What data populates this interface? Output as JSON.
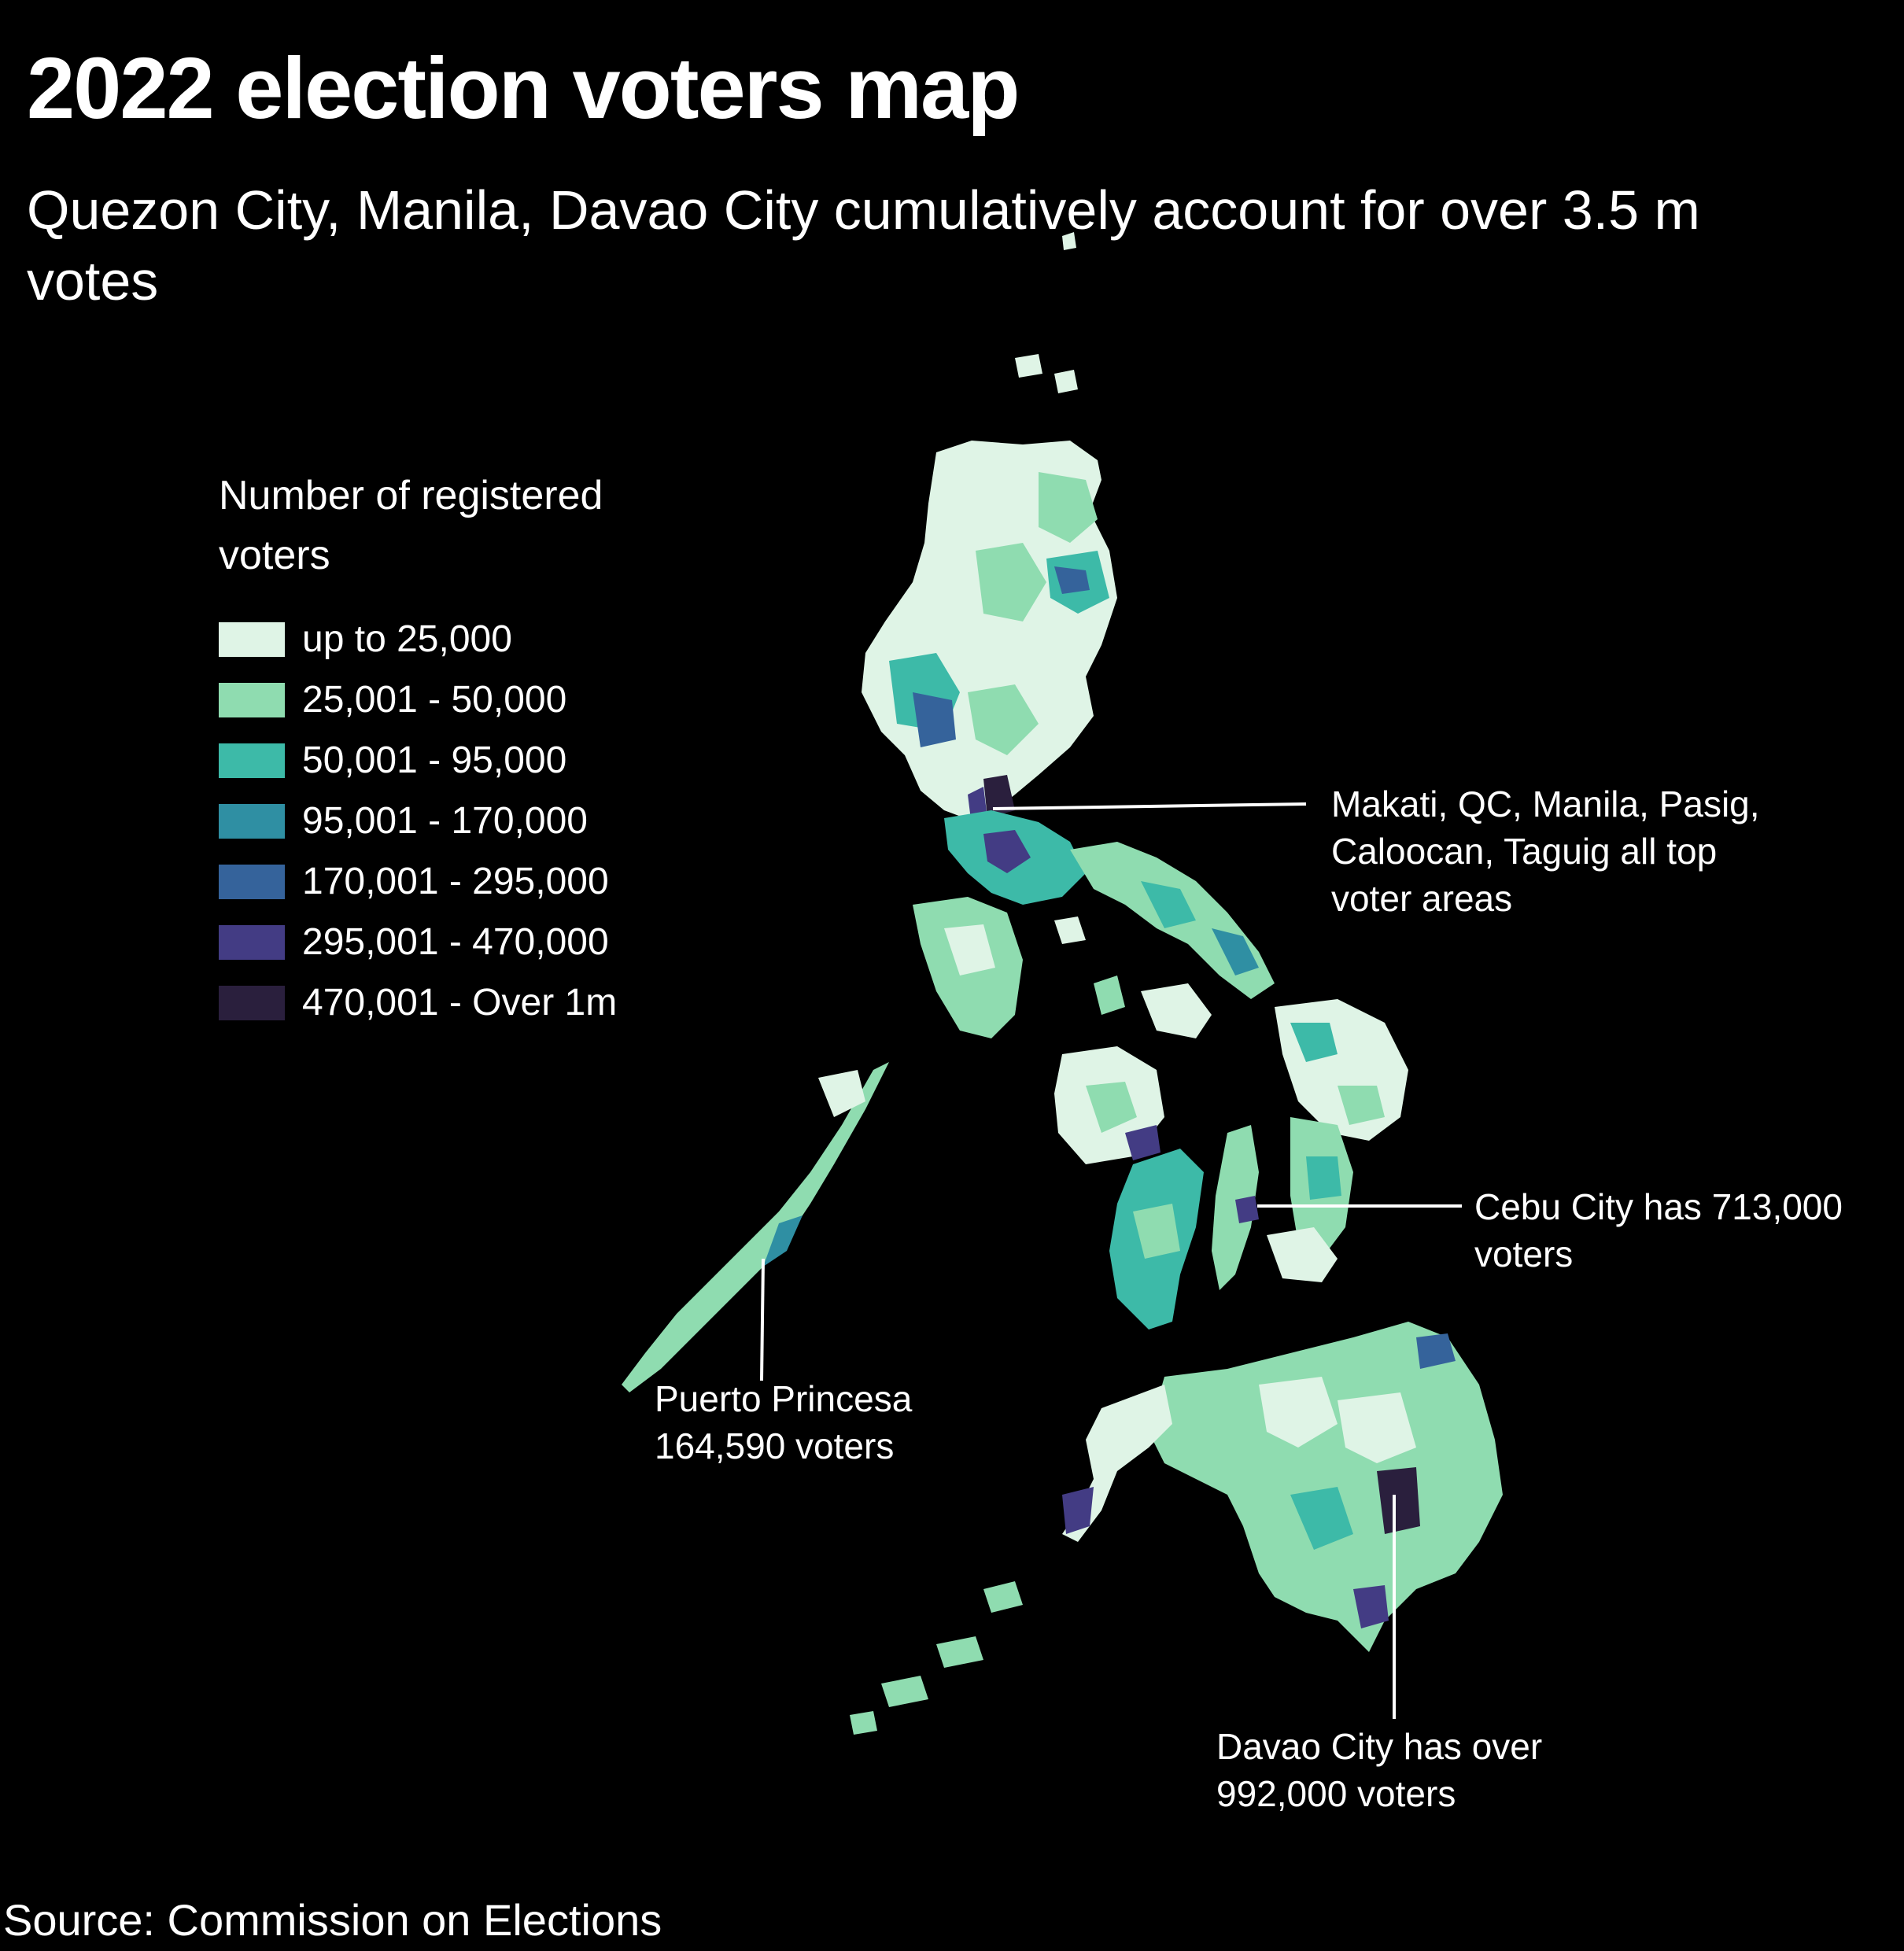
{
  "title": "2022 election voters map",
  "subtitle": "Quezon City, Manila, Davao City cumulatively account for over 3.5 m votes",
  "legend": {
    "title": "Number of registered voters",
    "items": [
      {
        "label": "up to 25,000",
        "color": "#dff4e6"
      },
      {
        "label": "25,001 - 50,000",
        "color": "#8fdcb0"
      },
      {
        "label": "50,001 - 95,000",
        "color": "#3dbaa8"
      },
      {
        "label": "95,001 - 170,000",
        "color": "#2f8fa3"
      },
      {
        "label": "170,001 - 295,000",
        "color": "#35639b"
      },
      {
        "label": "295,001 - 470,000",
        "color": "#433c84"
      },
      {
        "label": "470,001 - Over 1m",
        "color": "#2a1f3d"
      }
    ]
  },
  "annotations": {
    "metro": "Makati, QC, Manila, Pasig, Caloocan, Taguig all top voter areas",
    "cebu": "Cebu City has 713,000 voters",
    "puerto": "Puerto Princesa 164,590 voters",
    "davao": "Davao City has over 992,000 voters"
  },
  "source": "Source: Commission on Elections"
}
